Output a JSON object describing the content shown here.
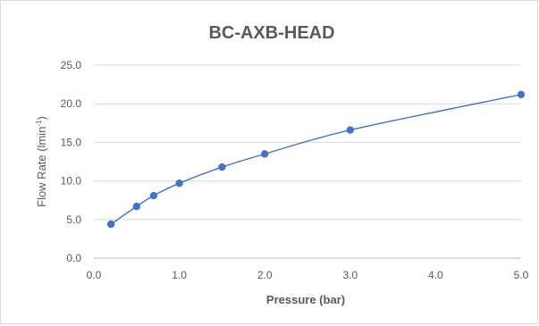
{
  "chart_data": {
    "type": "scatter",
    "title": "BC-AXB-HEAD",
    "xlabel": "Pressure (bar)",
    "ylabel": {
      "main": "Flow Rate (lmin",
      "sup": "-1",
      "end": ")"
    },
    "xlim": [
      0,
      5
    ],
    "ylim": [
      0,
      25
    ],
    "x_ticks": [
      "0.0",
      "1.0",
      "2.0",
      "3.0",
      "4.0",
      "5.0"
    ],
    "y_ticks": [
      "0.0",
      "5.0",
      "10.0",
      "15.0",
      "20.0",
      "25.0"
    ],
    "grid": "horizontal",
    "smooth_line": true,
    "series": [
      {
        "color": "#4472c4",
        "x": [
          0.2,
          0.5,
          0.7,
          1.0,
          1.5,
          2.0,
          3.0,
          5.0
        ],
        "y": [
          4.4,
          6.7,
          8.1,
          9.7,
          11.8,
          13.5,
          16.6,
          21.2
        ]
      }
    ]
  }
}
